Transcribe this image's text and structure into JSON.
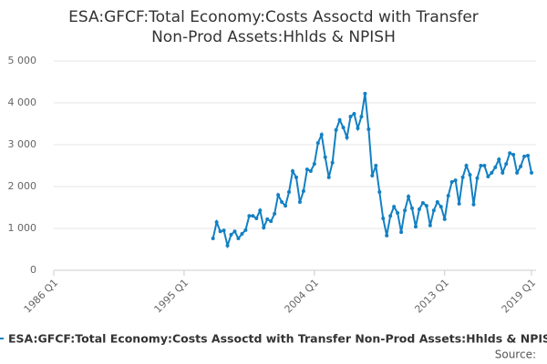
{
  "chart_data": {
    "type": "line",
    "title": "ESA:GFCF:Total Economy:Costs Assoctd with Transfer Non-Prod Assets:Hhlds & NPISH",
    "source": "Source:",
    "xlim": [
      "1986 Q1",
      "2019 Q1"
    ],
    "xticks": [
      "1986 Q1",
      "1995 Q1",
      "2004 Q1",
      "2013 Q1",
      "2019 Q1"
    ],
    "ylim": [
      0,
      5000
    ],
    "yticks": [
      0,
      {
        "value": 1000,
        "label": "1 000"
      },
      {
        "value": 2000,
        "label": "2 000"
      },
      {
        "value": 3000,
        "label": "3 000"
      },
      {
        "value": 4000,
        "label": "4 000"
      },
      {
        "value": 5000,
        "label": "5 000"
      }
    ],
    "grid": true,
    "x": [
      "1997 Q1",
      "1997 Q2",
      "1997 Q3",
      "1997 Q4",
      "1998 Q1",
      "1998 Q2",
      "1998 Q3",
      "1998 Q4",
      "1999 Q1",
      "1999 Q2",
      "1999 Q3",
      "1999 Q4",
      "2000 Q1",
      "2000 Q2",
      "2000 Q3",
      "2000 Q4",
      "2001 Q1",
      "2001 Q2",
      "2001 Q3",
      "2001 Q4",
      "2002 Q1",
      "2002 Q2",
      "2002 Q3",
      "2002 Q4",
      "2003 Q1",
      "2003 Q2",
      "2003 Q3",
      "2003 Q4",
      "2004 Q1",
      "2004 Q2",
      "2004 Q3",
      "2004 Q4",
      "2005 Q1",
      "2005 Q2",
      "2005 Q3",
      "2005 Q4",
      "2006 Q1",
      "2006 Q2",
      "2006 Q3",
      "2006 Q4",
      "2007 Q1",
      "2007 Q2",
      "2007 Q3",
      "2007 Q4",
      "2008 Q1",
      "2008 Q2",
      "2008 Q3",
      "2008 Q4",
      "2009 Q1",
      "2009 Q2",
      "2009 Q3",
      "2009 Q4",
      "2010 Q1",
      "2010 Q2",
      "2010 Q3",
      "2010 Q4",
      "2011 Q1",
      "2011 Q2",
      "2011 Q3",
      "2011 Q4",
      "2012 Q1",
      "2012 Q2",
      "2012 Q3",
      "2012 Q4",
      "2013 Q1",
      "2013 Q2",
      "2013 Q3",
      "2013 Q4",
      "2014 Q1",
      "2014 Q2",
      "2014 Q3",
      "2014 Q4",
      "2015 Q1",
      "2015 Q2",
      "2015 Q3",
      "2015 Q4",
      "2016 Q1",
      "2016 Q2",
      "2016 Q3",
      "2016 Q4",
      "2017 Q1",
      "2017 Q2",
      "2017 Q3",
      "2017 Q4",
      "2018 Q1",
      "2018 Q2",
      "2018 Q3",
      "2018 Q4",
      "2019 Q1"
    ],
    "series": [
      {
        "name": "ESA:GFCF:Total Economy:Costs Assoctd with Transfer Non-Prod Assets:Hhlds & NPISH",
        "color": "#1380c3",
        "values": [
          760,
          1150,
          930,
          950,
          590,
          850,
          930,
          760,
          870,
          960,
          1300,
          1300,
          1240,
          1430,
          1020,
          1220,
          1170,
          1350,
          1800,
          1630,
          1540,
          1870,
          2370,
          2220,
          1630,
          1890,
          2410,
          2370,
          2540,
          3040,
          3240,
          2700,
          2220,
          2570,
          3350,
          3590,
          3410,
          3170,
          3670,
          3740,
          3390,
          3670,
          4220,
          3370,
          2260,
          2500,
          1870,
          1240,
          830,
          1300,
          1520,
          1370,
          910,
          1430,
          1760,
          1480,
          1040,
          1460,
          1610,
          1540,
          1070,
          1430,
          1630,
          1520,
          1220,
          1780,
          2110,
          2150,
          1590,
          2220,
          2500,
          2280,
          1570,
          2200,
          2500,
          2500,
          2240,
          2330,
          2460,
          2650,
          2330,
          2540,
          2800,
          2760,
          2330,
          2480,
          2720,
          2740,
          2330
        ]
      }
    ]
  }
}
